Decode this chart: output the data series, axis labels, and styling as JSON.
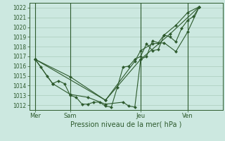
{
  "background_color": "#cce8e0",
  "grid_color": "#aaccbb",
  "line_color": "#2d5a2d",
  "marker_color": "#2d5a2d",
  "xlabel_text": "Pression niveau de la mer( hPa )",
  "ylim": [
    1011.5,
    1022.5
  ],
  "yticks": [
    1012,
    1013,
    1014,
    1015,
    1016,
    1017,
    1018,
    1019,
    1020,
    1021,
    1022
  ],
  "xtick_labels": [
    "Mer",
    "Sam",
    "Jeu",
    "Ven"
  ],
  "xtick_positions": [
    0,
    3,
    9,
    13
  ],
  "xlim": [
    -0.5,
    16.0
  ],
  "vline_positions": [
    0,
    3,
    9,
    13
  ],
  "series": [
    [
      0,
      1016.7,
      0.5,
      1015.9,
      1.0,
      1015.0,
      1.5,
      1014.2,
      2.0,
      1014.5,
      2.5,
      1014.2,
      3.0,
      1013.0,
      3.5,
      1012.8,
      4.0,
      1012.1,
      4.5,
      1012.1,
      5.0,
      1012.3,
      5.5,
      1012.3,
      6.0,
      1011.9,
      6.5,
      1011.8,
      7.0,
      1013.8,
      7.5,
      1015.9,
      8.0,
      1016.0,
      8.5,
      1016.7,
      9.0,
      1017.0,
      9.5,
      1018.3,
      10.0,
      1017.6,
      10.5,
      1017.7,
      11.0,
      1019.2,
      11.5,
      1019.0,
      12.0,
      1018.5,
      12.5,
      1019.9,
      13.0,
      1020.7,
      13.5,
      1021.1,
      14.0,
      1022.1
    ],
    [
      0,
      1016.7,
      1.5,
      1014.2,
      3.0,
      1013.1,
      4.5,
      1012.8,
      6.0,
      1012.1,
      7.5,
      1012.3,
      8.0,
      1011.9,
      8.5,
      1011.8,
      9.0,
      1016.7,
      9.5,
      1017.0,
      10.0,
      1018.6,
      10.5,
      1018.4,
      11.0,
      1019.2,
      12.0,
      1020.2,
      13.0,
      1021.5,
      14.0,
      1022.1
    ],
    [
      0,
      1016.7,
      3.0,
      1014.9,
      6.0,
      1012.5,
      8.5,
      1016.5,
      9.0,
      1017.6,
      10.0,
      1018.3,
      11.0,
      1018.4,
      12.0,
      1017.5,
      13.0,
      1019.5,
      14.0,
      1022.1
    ],
    [
      0,
      1016.7,
      6.0,
      1012.5,
      9.0,
      1016.7,
      11.5,
      1019.3,
      14.0,
      1022.1
    ]
  ]
}
